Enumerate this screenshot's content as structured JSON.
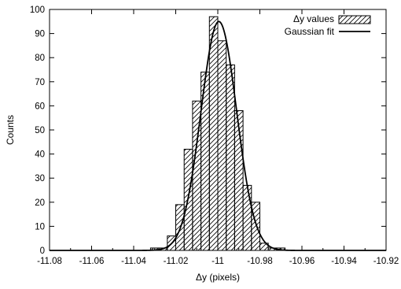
{
  "chart_data": {
    "type": "bar",
    "subtype": "histogram-with-fit",
    "xlabel": "Δy (pixels)",
    "ylabel": "Counts",
    "xlim": [
      -11.08,
      -10.92
    ],
    "ylim": [
      0,
      100
    ],
    "xticks": [
      "-11.08",
      "-11.06",
      "-11.04",
      "-11.02",
      "-11",
      "-10.98",
      "-10.96",
      "-10.94",
      "-10.92"
    ],
    "xtick_values": [
      -11.08,
      -11.06,
      -11.04,
      -11.02,
      -11.0,
      -10.98,
      -10.96,
      -10.94,
      -10.92
    ],
    "yticks": [
      "0",
      "10",
      "20",
      "30",
      "40",
      "50",
      "60",
      "70",
      "80",
      "90",
      "100"
    ],
    "ytick_values": [
      0,
      10,
      20,
      30,
      40,
      50,
      60,
      70,
      80,
      90,
      100
    ],
    "grid": false,
    "legend_position": "top-right",
    "bin_width": 0.004,
    "series": [
      {
        "name": "Δy values",
        "kind": "histogram",
        "style": "hatched",
        "bin_centers": [
          -11.03,
          -11.026,
          -11.022,
          -11.018,
          -11.014,
          -11.01,
          -11.006,
          -11.002,
          -10.998,
          -10.994,
          -10.99,
          -10.986,
          -10.982,
          -10.978,
          -10.974,
          -10.97
        ],
        "values": [
          1,
          1,
          6,
          19,
          42,
          62,
          74,
          97,
          87,
          77,
          58,
          27,
          20,
          3,
          1,
          1
        ]
      },
      {
        "name": "Gaussian fit",
        "kind": "line",
        "amplitude": 95,
        "mean": -10.9995,
        "sigma": 0.0085
      }
    ],
    "colors": {
      "bar_stroke": "#000000",
      "hatch": "#000000",
      "fit_line": "#000000",
      "axis": "#000000"
    }
  }
}
